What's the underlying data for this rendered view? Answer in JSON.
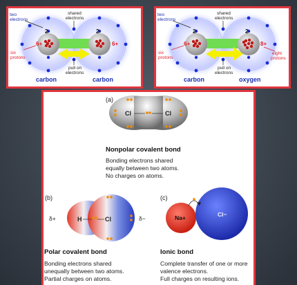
{
  "carbon_carbon": {
    "two_electrons": [
      "two",
      "electrons"
    ],
    "shared_electrons": [
      "shared",
      "electrons"
    ],
    "six_protons": [
      "six",
      "protons"
    ],
    "pull_on_electrons": [
      "pull on",
      "electrons"
    ],
    "left_charge": "2-",
    "right_charge": "2-",
    "left_nucleus": "6+",
    "right_nucleus": "6+",
    "left_atom": "carbon",
    "right_atom": "carbon"
  },
  "carbon_oxygen": {
    "two_electrons": [
      "two",
      "electrons"
    ],
    "shared_electrons": [
      "shared",
      "electrons"
    ],
    "six_protons": [
      "six",
      "protons"
    ],
    "eight_protons": [
      "eight",
      "protons"
    ],
    "pull_on_electrons": [
      "pull on",
      "electrons"
    ],
    "left_charge": "2-",
    "right_charge": "2-",
    "left_nucleus": "6+",
    "right_nucleus": "8+",
    "left_atom": "carbon",
    "right_atom": "oxygen"
  },
  "bond_types": {
    "nonpolar": {
      "letter": "(a)",
      "left_atom": "Cl",
      "right_atom": "Cl",
      "title": "Nonpolar covalent bond",
      "description": [
        "Bonding electrons shared",
        "equally between two atoms.",
        "No charges on atoms."
      ]
    },
    "polar": {
      "letter": "(b)",
      "left_atom": "H",
      "right_atom": "Cl",
      "partial_positive": "δ+",
      "partial_negative": "δ−",
      "title": "Polar covalent bond",
      "description": [
        "Bonding electrons shared",
        "unequally between two atoms.",
        "Partial charges on atoms."
      ]
    },
    "ionic": {
      "letter": "(c)",
      "cation": "Na+",
      "anion": "Cl−",
      "title": "Ionic bond",
      "description": [
        "Complete transfer of one or more",
        "valence electrons.",
        "Full charges on resulting ions."
      ]
    }
  },
  "colors": {
    "panel_border": "#e0363e",
    "electron_blue": "#1a2fd6",
    "label_red": "#e0202a",
    "atom_label_blue": "#1a2fb0",
    "shared_green": "#6fdc52",
    "pull_yellow": "#f4f000",
    "electron_orange": "#f08a00"
  }
}
